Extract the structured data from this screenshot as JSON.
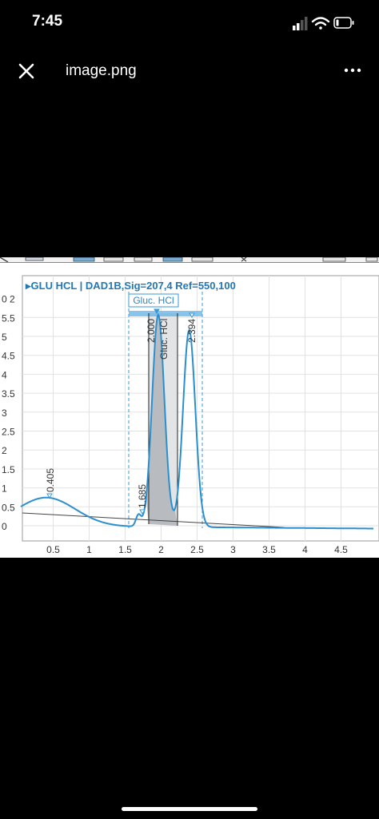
{
  "status_bar": {
    "time": "7:45"
  },
  "topbar": {
    "filename": "image.png"
  },
  "chromatogram": {
    "signal_label": "▸GLU HCL | DAD1B,Sig=207,4  Ref=550,100",
    "compound_label": "Gluc. HCl",
    "peak_labels": [
      "0.405",
      "1.685",
      "2.000",
      "Gluc. HCl",
      "2.394"
    ],
    "x_ticks": [
      "0.5",
      "1",
      "1.5",
      "2",
      "2.5",
      "3",
      "3.5",
      "4",
      "4.5"
    ],
    "y_ticks": [
      "0",
      "0.5",
      "1",
      "1.5",
      "2",
      "2.5",
      "3",
      "3.5",
      "4",
      "4.5",
      "5",
      "5.5",
      "0 2"
    ],
    "trace_color": "#2b8fcf"
  }
}
